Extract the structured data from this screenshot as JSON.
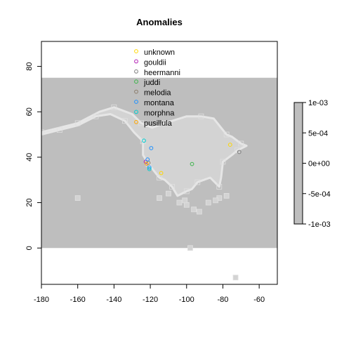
{
  "chart_data": {
    "type": "scatter",
    "title": "Anomalies",
    "xlim": [
      -180,
      -50
    ],
    "ylim": [
      -16,
      91
    ],
    "x_ticks": [
      -180,
      -160,
      -140,
      -120,
      -100,
      -80,
      -60
    ],
    "y_ticks": [
      0,
      20,
      40,
      60,
      80
    ],
    "x_tick_labels": [
      "-180",
      "-160",
      "-140",
      "-120",
      "-100",
      "-80",
      "-60"
    ],
    "y_tick_labels": [
      "0",
      "20",
      "40",
      "60",
      "80"
    ],
    "grid": false,
    "raster_band": {
      "lat_min": 0,
      "lat_max": 75,
      "color": "#bebebe"
    },
    "landmass": {
      "color": "#d3d3d3",
      "outline": [
        [
          -180,
          51
        ],
        [
          -170,
          53
        ],
        [
          -160,
          55
        ],
        [
          -148,
          60
        ],
        [
          -140,
          62
        ],
        [
          -130,
          59
        ],
        [
          -125,
          55
        ],
        [
          -119,
          53
        ],
        [
          -112,
          55
        ],
        [
          -100,
          58
        ],
        [
          -92,
          58
        ],
        [
          -85,
          57
        ],
        [
          -78,
          50
        ],
        [
          -75,
          49
        ],
        [
          -70,
          46
        ],
        [
          -67,
          45
        ],
        [
          -72,
          43
        ],
        [
          -75,
          41
        ],
        [
          -80,
          38
        ],
        [
          -81,
          31
        ],
        [
          -82,
          27
        ],
        [
          -87,
          31
        ],
        [
          -94,
          29
        ],
        [
          -97,
          26
        ],
        [
          -100,
          25
        ],
        [
          -105,
          23
        ],
        [
          -108,
          27
        ],
        [
          -112,
          30
        ],
        [
          -115,
          31
        ],
        [
          -118,
          34
        ],
        [
          -121,
          37
        ],
        [
          -124,
          41
        ],
        [
          -124,
          47
        ],
        [
          -129,
          51
        ],
        [
          -134,
          56
        ],
        [
          -142,
          59
        ],
        [
          -150,
          58
        ],
        [
          -160,
          54
        ],
        [
          -170,
          52
        ],
        [
          -180,
          50
        ]
      ],
      "islands": [
        [
          -82,
          22
        ],
        [
          -88,
          20
        ],
        [
          -100,
          19
        ],
        [
          -101,
          21
        ],
        [
          -115,
          22
        ],
        [
          -110,
          24
        ],
        [
          -93,
          16
        ],
        [
          -96,
          17
        ],
        [
          -104,
          20
        ],
        [
          -84,
          21
        ],
        [
          -78,
          23
        ],
        [
          -160,
          22
        ],
        [
          -98,
          0
        ],
        [
          -73,
          -13
        ]
      ]
    },
    "series": [
      {
        "name": "unknown",
        "color": "#ffd700",
        "points": [
          [
            -76,
            45.5
          ],
          [
            -114,
            33
          ]
        ]
      },
      {
        "name": "gouldii",
        "color": "#b21eb4",
        "points": [
          [
            -122.5,
            38
          ]
        ]
      },
      {
        "name": "heermanni",
        "color": "#7f7f7f",
        "points": [
          [
            -71,
            42.3
          ]
        ]
      },
      {
        "name": "juddi",
        "color": "#3cb44b",
        "points": [
          [
            -97,
            37
          ]
        ]
      },
      {
        "name": "melodia",
        "color": "#8b7d6b",
        "points": [
          [
            -121,
            37.5
          ]
        ]
      },
      {
        "name": "montana",
        "color": "#1e90ff",
        "points": [
          [
            -119.5,
            44
          ],
          [
            -121.5,
            39
          ],
          [
            -120.5,
            35.5
          ]
        ]
      },
      {
        "name": "morphna",
        "color": "#00ced1",
        "points": [
          [
            -123.5,
            47.3
          ],
          [
            -120.5,
            34.8
          ]
        ]
      },
      {
        "name": "pusillula",
        "color": "#ffa500",
        "points": [
          [
            -122,
            37.2
          ]
        ]
      }
    ],
    "legend_position": "top-center",
    "colorbar": {
      "tick_labels": [
        "1e-03",
        "5e-04",
        "0e+00",
        "-5e-04",
        "-1e-03"
      ],
      "color": "#bebebe"
    }
  }
}
